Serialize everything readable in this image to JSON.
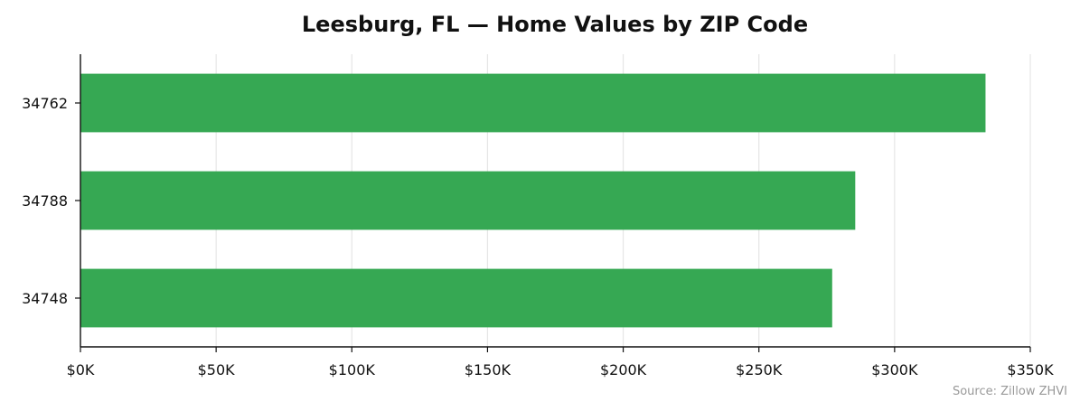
{
  "chart_data": {
    "type": "bar",
    "orientation": "horizontal",
    "title": "Leesburg, FL — Home Values by ZIP Code",
    "xlabel": "",
    "ylabel": "",
    "categories": [
      "34762",
      "34788",
      "34748"
    ],
    "values": [
      333500,
      285500,
      277000
    ],
    "xlim": [
      0,
      350000
    ],
    "xticks": [
      0,
      50000,
      100000,
      150000,
      200000,
      250000,
      300000,
      350000
    ],
    "xtick_labels": [
      "$0K",
      "$50K",
      "$100K",
      "$150K",
      "$200K",
      "$250K",
      "$300K",
      "$350K"
    ],
    "grid": "vertical",
    "bar_color": "#36a853",
    "source_note": "Source: Zillow ZHVI"
  }
}
